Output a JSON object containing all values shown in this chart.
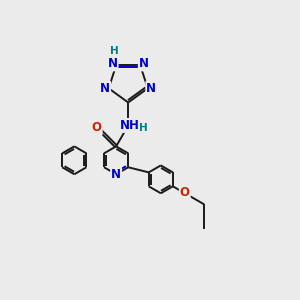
{
  "bg_color": "#ebebeb",
  "bond_color": "#1a1a1a",
  "N_color": "#0000cc",
  "O_color": "#cc2200",
  "H_color": "#008080",
  "font_size": 8.5,
  "lw": 1.4,
  "fig_width": 3.0,
  "fig_height": 3.0,
  "xlim": [
    0,
    10
  ],
  "ylim": [
    0,
    10
  ]
}
